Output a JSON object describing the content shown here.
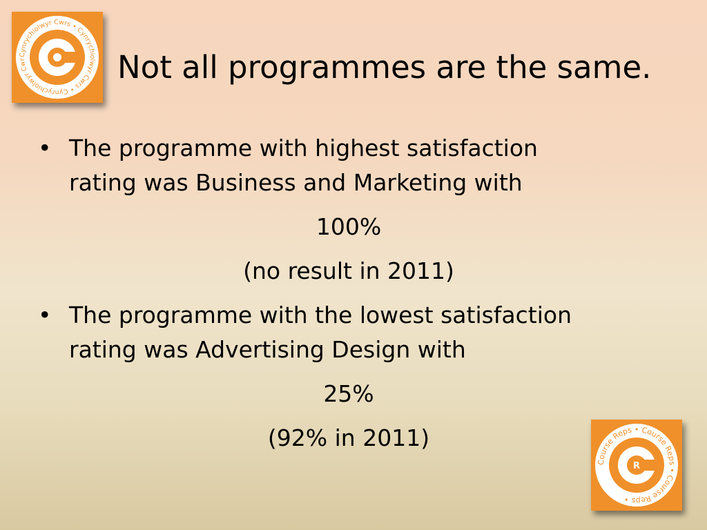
{
  "slide": {
    "title": "Not all programmes are the same.",
    "bullet_char": "•",
    "items": [
      {
        "line1": "The programme with highest satisfaction",
        "line2": "rating was Business and Marketing with",
        "value": "100%",
        "note": "(no result in 2011)"
      },
      {
        "line1": "The programme with the lowest satisfaction",
        "line2": "rating was Advertising Design with",
        "value": "25%",
        "note": "(92% in 2011)"
      }
    ]
  },
  "logos": {
    "top_text": "Cynrychiolwyr Cwrs • Cynrychiolwyr Cwrs • Cynrychiolwyr Cwrs •",
    "bottom_text": "Course Reps • Course Reps • Course Reps •",
    "brand_orange": "#f0902a"
  }
}
